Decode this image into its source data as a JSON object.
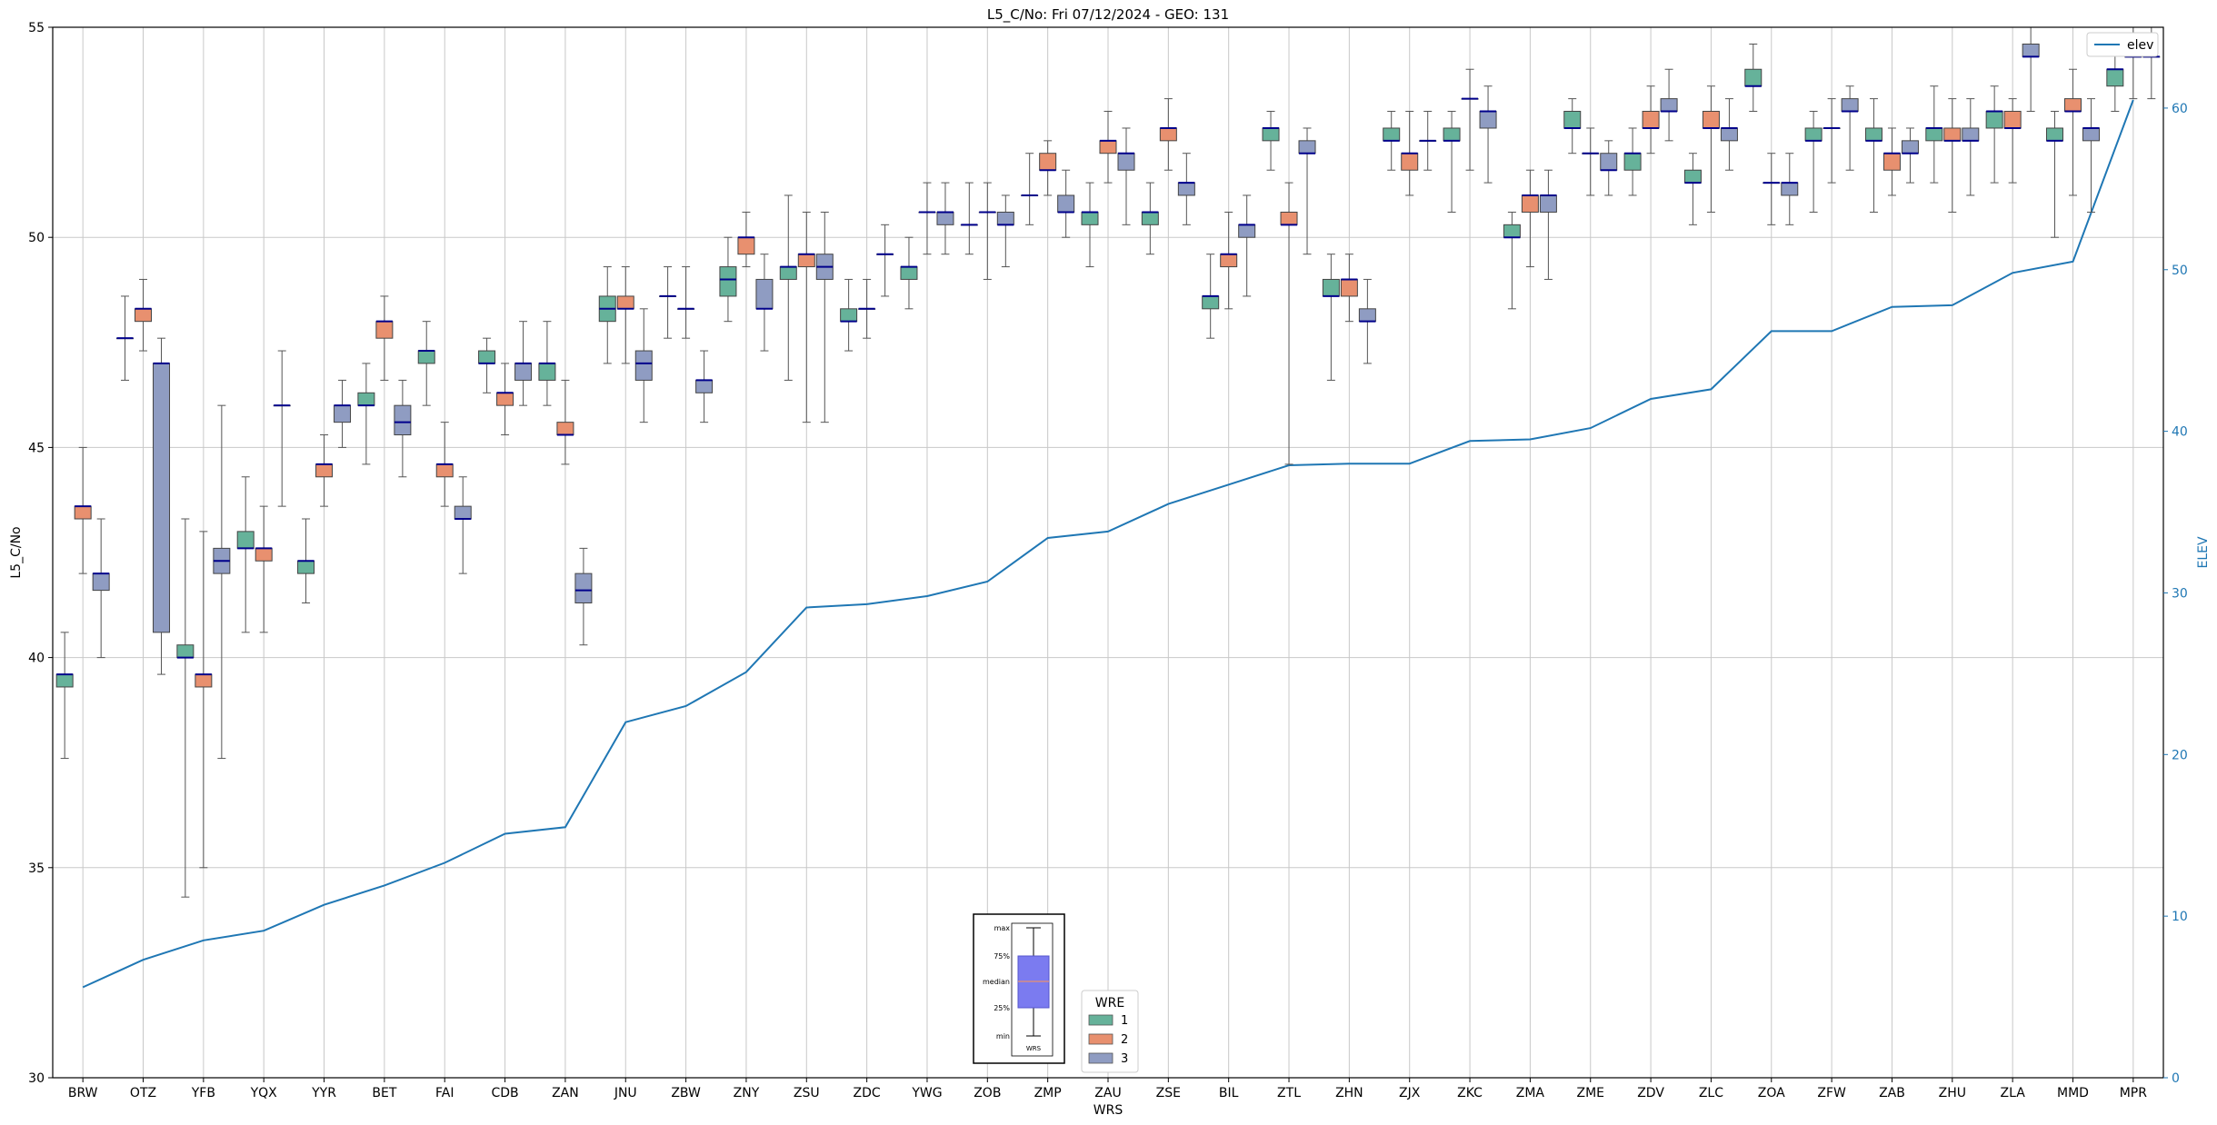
{
  "chart_data": {
    "type": "box",
    "title": "L5_C/No: Fri 07/12/2024 - GEO: 131",
    "xlabel": "WRS",
    "ylabel": "L5_C/No",
    "y2label": "ELEV",
    "ylim": [
      30,
      55
    ],
    "y2lim": [
      0,
      65
    ],
    "yticks": [
      30,
      35,
      40,
      45,
      50,
      55
    ],
    "y2ticks": [
      0,
      10,
      20,
      30,
      40,
      50,
      60
    ],
    "grid": true,
    "categories": [
      "BRW",
      "OTZ",
      "YFB",
      "YQX",
      "YYR",
      "BET",
      "FAI",
      "CDB",
      "ZAN",
      "JNU",
      "ZBW",
      "ZNY",
      "ZSU",
      "ZDC",
      "YWG",
      "ZOB",
      "ZMP",
      "ZAU",
      "ZSE",
      "BIL",
      "ZTL",
      "ZHN",
      "ZJX",
      "ZKC",
      "ZMA",
      "ZME",
      "ZDV",
      "ZLC",
      "ZOA",
      "ZFW",
      "ZAB",
      "ZHU",
      "ZLA",
      "MMD",
      "MPR"
    ],
    "wre_colors": {
      "1": "#66b29a",
      "2": "#e8906f",
      "3": "#8f9cc2"
    },
    "median_color": "#00008b",
    "elev_color": "#1f77b4",
    "boxes": [
      {
        "station": "BRW",
        "wre": 1,
        "min": 37.6,
        "q1": 39.3,
        "median": 39.6,
        "q3": 39.6,
        "max": 40.6
      },
      {
        "station": "BRW",
        "wre": 2,
        "min": 42.0,
        "q1": 43.3,
        "median": 43.6,
        "q3": 43.6,
        "max": 45.0
      },
      {
        "station": "BRW",
        "wre": 3,
        "min": 40.0,
        "q1": 41.6,
        "median": 42.0,
        "q3": 42.0,
        "max": 43.3
      },
      {
        "station": "OTZ",
        "wre": 1,
        "min": 46.6,
        "q1": 47.6,
        "median": 47.6,
        "q3": 47.6,
        "max": 48.6
      },
      {
        "station": "OTZ",
        "wre": 2,
        "min": 47.3,
        "q1": 48.0,
        "median": 48.3,
        "q3": 48.3,
        "max": 49.0
      },
      {
        "station": "OTZ",
        "wre": 3,
        "min": 39.6,
        "q1": 40.6,
        "median": 47.0,
        "q3": 47.0,
        "max": 47.6
      },
      {
        "station": "YFB",
        "wre": 1,
        "min": 34.3,
        "q1": 40.0,
        "median": 40.0,
        "q3": 40.3,
        "max": 43.3
      },
      {
        "station": "YFB",
        "wre": 2,
        "min": 35.0,
        "q1": 39.3,
        "median": 39.6,
        "q3": 39.6,
        "max": 43.0
      },
      {
        "station": "YFB",
        "wre": 3,
        "min": 37.6,
        "q1": 42.0,
        "median": 42.3,
        "q3": 42.6,
        "max": 46.0
      },
      {
        "station": "YQX",
        "wre": 1,
        "min": 40.6,
        "q1": 42.6,
        "median": 42.6,
        "q3": 43.0,
        "max": 44.3
      },
      {
        "station": "YQX",
        "wre": 2,
        "min": 40.6,
        "q1": 42.3,
        "median": 42.6,
        "q3": 42.6,
        "max": 43.6
      },
      {
        "station": "YQX",
        "wre": 3,
        "min": 43.6,
        "q1": 46.0,
        "median": 46.0,
        "q3": 46.0,
        "max": 47.3
      },
      {
        "station": "YYR",
        "wre": 1,
        "min": 41.3,
        "q1": 42.0,
        "median": 42.3,
        "q3": 42.3,
        "max": 43.3
      },
      {
        "station": "YYR",
        "wre": 2,
        "min": 43.6,
        "q1": 44.3,
        "median": 44.6,
        "q3": 44.6,
        "max": 45.3
      },
      {
        "station": "YYR",
        "wre": 3,
        "min": 45.0,
        "q1": 45.6,
        "median": 46.0,
        "q3": 46.0,
        "max": 46.6
      },
      {
        "station": "BET",
        "wre": 1,
        "min": 44.6,
        "q1": 46.0,
        "median": 46.0,
        "q3": 46.3,
        "max": 47.0
      },
      {
        "station": "BET",
        "wre": 2,
        "min": 46.6,
        "q1": 47.6,
        "median": 48.0,
        "q3": 48.0,
        "max": 48.6
      },
      {
        "station": "BET",
        "wre": 3,
        "min": 44.3,
        "q1": 45.3,
        "median": 45.6,
        "q3": 46.0,
        "max": 46.6
      },
      {
        "station": "FAI",
        "wre": 1,
        "min": 46.0,
        "q1": 47.0,
        "median": 47.3,
        "q3": 47.3,
        "max": 48.0
      },
      {
        "station": "FAI",
        "wre": 2,
        "min": 43.6,
        "q1": 44.3,
        "median": 44.6,
        "q3": 44.6,
        "max": 45.6
      },
      {
        "station": "FAI",
        "wre": 3,
        "min": 42.0,
        "q1": 43.3,
        "median": 43.3,
        "q3": 43.6,
        "max": 44.3
      },
      {
        "station": "CDB",
        "wre": 1,
        "min": 46.3,
        "q1": 47.0,
        "median": 47.0,
        "q3": 47.3,
        "max": 47.6
      },
      {
        "station": "CDB",
        "wre": 2,
        "min": 45.3,
        "q1": 46.0,
        "median": 46.3,
        "q3": 46.3,
        "max": 47.0
      },
      {
        "station": "CDB",
        "wre": 3,
        "min": 46.0,
        "q1": 46.6,
        "median": 47.0,
        "q3": 47.0,
        "max": 48.0
      },
      {
        "station": "ZAN",
        "wre": 1,
        "min": 46.0,
        "q1": 46.6,
        "median": 47.0,
        "q3": 47.0,
        "max": 48.0
      },
      {
        "station": "ZAN",
        "wre": 2,
        "min": 44.6,
        "q1": 45.3,
        "median": 45.3,
        "q3": 45.6,
        "max": 46.6
      },
      {
        "station": "ZAN",
        "wre": 3,
        "min": 40.3,
        "q1": 41.3,
        "median": 41.6,
        "q3": 42.0,
        "max": 42.6
      },
      {
        "station": "JNU",
        "wre": 1,
        "min": 47.0,
        "q1": 48.0,
        "median": 48.3,
        "q3": 48.6,
        "max": 49.3
      },
      {
        "station": "JNU",
        "wre": 2,
        "min": 47.0,
        "q1": 48.3,
        "median": 48.3,
        "q3": 48.6,
        "max": 49.3
      },
      {
        "station": "JNU",
        "wre": 3,
        "min": 45.6,
        "q1": 46.6,
        "median": 47.0,
        "q3": 47.3,
        "max": 48.3
      },
      {
        "station": "ZBW",
        "wre": 1,
        "min": 47.6,
        "q1": 48.6,
        "median": 48.6,
        "q3": 48.6,
        "max": 49.3
      },
      {
        "station": "ZBW",
        "wre": 2,
        "min": 47.6,
        "q1": 48.3,
        "median": 48.3,
        "q3": 48.3,
        "max": 49.3
      },
      {
        "station": "ZBW",
        "wre": 3,
        "min": 45.6,
        "q1": 46.3,
        "median": 46.6,
        "q3": 46.6,
        "max": 47.3
      },
      {
        "station": "ZNY",
        "wre": 1,
        "min": 48.0,
        "q1": 48.6,
        "median": 49.0,
        "q3": 49.3,
        "max": 50.0
      },
      {
        "station": "ZNY",
        "wre": 2,
        "min": 49.3,
        "q1": 49.6,
        "median": 50.0,
        "q3": 50.0,
        "max": 50.6
      },
      {
        "station": "ZNY",
        "wre": 3,
        "min": 47.3,
        "q1": 48.3,
        "median": 48.3,
        "q3": 49.0,
        "max": 49.6
      },
      {
        "station": "ZSU",
        "wre": 1,
        "min": 46.6,
        "q1": 49.0,
        "median": 49.3,
        "q3": 49.3,
        "max": 51.0
      },
      {
        "station": "ZSU",
        "wre": 2,
        "min": 45.6,
        "q1": 49.3,
        "median": 49.6,
        "q3": 49.6,
        "max": 50.6
      },
      {
        "station": "ZSU",
        "wre": 3,
        "min": 45.6,
        "q1": 49.0,
        "median": 49.3,
        "q3": 49.6,
        "max": 50.6
      },
      {
        "station": "ZDC",
        "wre": 1,
        "min": 47.3,
        "q1": 48.0,
        "median": 48.0,
        "q3": 48.3,
        "max": 49.0
      },
      {
        "station": "ZDC",
        "wre": 2,
        "min": 47.6,
        "q1": 48.3,
        "median": 48.3,
        "q3": 48.3,
        "max": 49.0
      },
      {
        "station": "ZDC",
        "wre": 3,
        "min": 48.6,
        "q1": 49.6,
        "median": 49.6,
        "q3": 49.6,
        "max": 50.3
      },
      {
        "station": "YWG",
        "wre": 1,
        "min": 48.3,
        "q1": 49.0,
        "median": 49.3,
        "q3": 49.3,
        "max": 50.0
      },
      {
        "station": "YWG",
        "wre": 2,
        "min": 49.6,
        "q1": 50.6,
        "median": 50.6,
        "q3": 50.6,
        "max": 51.3
      },
      {
        "station": "YWG",
        "wre": 3,
        "min": 49.6,
        "q1": 50.3,
        "median": 50.6,
        "q3": 50.6,
        "max": 51.3
      },
      {
        "station": "ZOB",
        "wre": 1,
        "min": 49.6,
        "q1": 50.3,
        "median": 50.3,
        "q3": 50.3,
        "max": 51.3
      },
      {
        "station": "ZOB",
        "wre": 2,
        "min": 49.0,
        "q1": 50.6,
        "median": 50.6,
        "q3": 50.6,
        "max": 51.3
      },
      {
        "station": "ZOB",
        "wre": 3,
        "min": 49.3,
        "q1": 50.3,
        "median": 50.3,
        "q3": 50.6,
        "max": 51.0
      },
      {
        "station": "ZMP",
        "wre": 1,
        "min": 50.3,
        "q1": 51.0,
        "median": 51.0,
        "q3": 51.0,
        "max": 52.0
      },
      {
        "station": "ZMP",
        "wre": 2,
        "min": 51.0,
        "q1": 51.6,
        "median": 51.6,
        "q3": 52.0,
        "max": 52.3
      },
      {
        "station": "ZMP",
        "wre": 3,
        "min": 50.0,
        "q1": 50.6,
        "median": 50.6,
        "q3": 51.0,
        "max": 51.6
      },
      {
        "station": "ZAU",
        "wre": 1,
        "min": 49.3,
        "q1": 50.3,
        "median": 50.6,
        "q3": 50.6,
        "max": 51.3
      },
      {
        "station": "ZAU",
        "wre": 2,
        "min": 51.3,
        "q1": 52.0,
        "median": 52.3,
        "q3": 52.3,
        "max": 53.0
      },
      {
        "station": "ZAU",
        "wre": 3,
        "min": 50.3,
        "q1": 51.6,
        "median": 52.0,
        "q3": 52.0,
        "max": 52.6
      },
      {
        "station": "ZSE",
        "wre": 1,
        "min": 49.6,
        "q1": 50.3,
        "median": 50.6,
        "q3": 50.6,
        "max": 51.3
      },
      {
        "station": "ZSE",
        "wre": 2,
        "min": 51.6,
        "q1": 52.3,
        "median": 52.6,
        "q3": 52.6,
        "max": 53.3
      },
      {
        "station": "ZSE",
        "wre": 3,
        "min": 50.3,
        "q1": 51.0,
        "median": 51.3,
        "q3": 51.3,
        "max": 52.0
      },
      {
        "station": "BIL",
        "wre": 1,
        "min": 47.6,
        "q1": 48.3,
        "median": 48.6,
        "q3": 48.6,
        "max": 49.6
      },
      {
        "station": "BIL",
        "wre": 2,
        "min": 48.3,
        "q1": 49.3,
        "median": 49.6,
        "q3": 49.6,
        "max": 50.6
      },
      {
        "station": "BIL",
        "wre": 3,
        "min": 48.6,
        "q1": 50.0,
        "median": 50.3,
        "q3": 50.3,
        "max": 51.0
      },
      {
        "station": "ZTL",
        "wre": 1,
        "min": 51.6,
        "q1": 52.3,
        "median": 52.6,
        "q3": 52.6,
        "max": 53.0
      },
      {
        "station": "ZTL",
        "wre": 2,
        "min": 44.6,
        "q1": 50.3,
        "median": 50.3,
        "q3": 50.6,
        "max": 51.3
      },
      {
        "station": "ZTL",
        "wre": 3,
        "min": 49.6,
        "q1": 52.0,
        "median": 52.0,
        "q3": 52.3,
        "max": 52.6
      },
      {
        "station": "ZHN",
        "wre": 1,
        "min": 46.6,
        "q1": 48.6,
        "median": 48.6,
        "q3": 49.0,
        "max": 49.6
      },
      {
        "station": "ZHN",
        "wre": 2,
        "min": 48.0,
        "q1": 48.6,
        "median": 49.0,
        "q3": 49.0,
        "max": 49.6
      },
      {
        "station": "ZHN",
        "wre": 3,
        "min": 47.0,
        "q1": 48.0,
        "median": 48.0,
        "q3": 48.3,
        "max": 49.0
      },
      {
        "station": "ZJX",
        "wre": 1,
        "min": 51.6,
        "q1": 52.3,
        "median": 52.3,
        "q3": 52.6,
        "max": 53.0
      },
      {
        "station": "ZJX",
        "wre": 2,
        "min": 51.0,
        "q1": 51.6,
        "median": 52.0,
        "q3": 52.0,
        "max": 53.0
      },
      {
        "station": "ZJX",
        "wre": 3,
        "min": 51.6,
        "q1": 52.3,
        "median": 52.3,
        "q3": 52.3,
        "max": 53.0
      },
      {
        "station": "ZKC",
        "wre": 1,
        "min": 50.6,
        "q1": 52.3,
        "median": 52.3,
        "q3": 52.6,
        "max": 53.0
      },
      {
        "station": "ZKC",
        "wre": 2,
        "min": 51.6,
        "q1": 53.3,
        "median": 53.3,
        "q3": 53.3,
        "max": 54.0
      },
      {
        "station": "ZKC",
        "wre": 3,
        "min": 51.3,
        "q1": 52.6,
        "median": 53.0,
        "q3": 53.0,
        "max": 53.6
      },
      {
        "station": "ZMA",
        "wre": 1,
        "min": 48.3,
        "q1": 50.0,
        "median": 50.0,
        "q3": 50.3,
        "max": 50.6
      },
      {
        "station": "ZMA",
        "wre": 2,
        "min": 49.3,
        "q1": 50.6,
        "median": 51.0,
        "q3": 51.0,
        "max": 51.6
      },
      {
        "station": "ZMA",
        "wre": 3,
        "min": 49.0,
        "q1": 50.6,
        "median": 51.0,
        "q3": 51.0,
        "max": 51.6
      },
      {
        "station": "ZME",
        "wre": 1,
        "min": 52.0,
        "q1": 52.6,
        "median": 52.6,
        "q3": 53.0,
        "max": 53.3
      },
      {
        "station": "ZME",
        "wre": 2,
        "min": 51.0,
        "q1": 52.0,
        "median": 52.0,
        "q3": 52.0,
        "max": 52.6
      },
      {
        "station": "ZME",
        "wre": 3,
        "min": 51.0,
        "q1": 51.6,
        "median": 51.6,
        "q3": 52.0,
        "max": 52.3
      },
      {
        "station": "ZDV",
        "wre": 1,
        "min": 51.0,
        "q1": 51.6,
        "median": 52.0,
        "q3": 52.0,
        "max": 52.6
      },
      {
        "station": "ZDV",
        "wre": 2,
        "min": 52.0,
        "q1": 52.6,
        "median": 52.6,
        "q3": 53.0,
        "max": 53.6
      },
      {
        "station": "ZDV",
        "wre": 3,
        "min": 52.3,
        "q1": 53.0,
        "median": 53.0,
        "q3": 53.3,
        "max": 54.0
      },
      {
        "station": "ZLC",
        "wre": 1,
        "min": 50.3,
        "q1": 51.3,
        "median": 51.3,
        "q3": 51.6,
        "max": 52.0
      },
      {
        "station": "ZLC",
        "wre": 2,
        "min": 50.6,
        "q1": 52.6,
        "median": 52.6,
        "q3": 53.0,
        "max": 53.6
      },
      {
        "station": "ZLC",
        "wre": 3,
        "min": 51.6,
        "q1": 52.3,
        "median": 52.6,
        "q3": 52.6,
        "max": 53.3
      },
      {
        "station": "ZOA",
        "wre": 1,
        "min": 53.0,
        "q1": 53.6,
        "median": 53.6,
        "q3": 54.0,
        "max": 54.6
      },
      {
        "station": "ZOA",
        "wre": 2,
        "min": 50.3,
        "q1": 51.3,
        "median": 51.3,
        "q3": 51.3,
        "max": 52.0
      },
      {
        "station": "ZOA",
        "wre": 3,
        "min": 50.3,
        "q1": 51.0,
        "median": 51.3,
        "q3": 51.3,
        "max": 52.0
      },
      {
        "station": "ZFW",
        "wre": 1,
        "min": 50.6,
        "q1": 52.3,
        "median": 52.3,
        "q3": 52.6,
        "max": 53.0
      },
      {
        "station": "ZFW",
        "wre": 2,
        "min": 51.3,
        "q1": 52.6,
        "median": 52.6,
        "q3": 52.6,
        "max": 53.3
      },
      {
        "station": "ZFW",
        "wre": 3,
        "min": 51.6,
        "q1": 53.0,
        "median": 53.0,
        "q3": 53.3,
        "max": 53.6
      },
      {
        "station": "ZAB",
        "wre": 1,
        "min": 50.6,
        "q1": 52.3,
        "median": 52.3,
        "q3": 52.6,
        "max": 53.3
      },
      {
        "station": "ZAB",
        "wre": 2,
        "min": 51.0,
        "q1": 51.6,
        "median": 52.0,
        "q3": 52.0,
        "max": 52.6
      },
      {
        "station": "ZAB",
        "wre": 3,
        "min": 51.3,
        "q1": 52.0,
        "median": 52.0,
        "q3": 52.3,
        "max": 52.6
      },
      {
        "station": "ZHU",
        "wre": 1,
        "min": 51.3,
        "q1": 52.3,
        "median": 52.6,
        "q3": 52.6,
        "max": 53.6
      },
      {
        "station": "ZHU",
        "wre": 2,
        "min": 50.6,
        "q1": 52.3,
        "median": 52.3,
        "q3": 52.6,
        "max": 53.3
      },
      {
        "station": "ZHU",
        "wre": 3,
        "min": 51.0,
        "q1": 52.3,
        "median": 52.3,
        "q3": 52.6,
        "max": 53.3
      },
      {
        "station": "ZLA",
        "wre": 1,
        "min": 51.3,
        "q1": 52.6,
        "median": 53.0,
        "q3": 53.0,
        "max": 53.6
      },
      {
        "station": "ZLA",
        "wre": 2,
        "min": 51.3,
        "q1": 52.6,
        "median": 52.6,
        "q3": 53.0,
        "max": 53.3
      },
      {
        "station": "ZLA",
        "wre": 3,
        "min": 53.0,
        "q1": 54.3,
        "median": 54.3,
        "q3": 54.6,
        "max": 55.0
      },
      {
        "station": "MMD",
        "wre": 1,
        "min": 50.0,
        "q1": 52.3,
        "median": 52.3,
        "q3": 52.6,
        "max": 53.0
      },
      {
        "station": "MMD",
        "wre": 2,
        "min": 51.0,
        "q1": 53.0,
        "median": 53.0,
        "q3": 53.3,
        "max": 54.0
      },
      {
        "station": "MMD",
        "wre": 3,
        "min": 50.6,
        "q1": 52.3,
        "median": 52.6,
        "q3": 52.6,
        "max": 53.3
      },
      {
        "station": "MPR",
        "wre": 1,
        "min": 53.0,
        "q1": 53.6,
        "median": 54.0,
        "q3": 54.0,
        "max": 54.6
      },
      {
        "station": "MPR",
        "wre": 2,
        "min": 53.3,
        "q1": 54.3,
        "median": 54.3,
        "q3": 54.3,
        "max": 55.0
      },
      {
        "station": "MPR",
        "wre": 3,
        "min": 53.3,
        "q1": 54.3,
        "median": 54.3,
        "q3": 54.3,
        "max": 55.0
      }
    ],
    "elev": {
      "name": "elev",
      "values": [
        5.6,
        7.3,
        8.5,
        9.1,
        10.7,
        11.9,
        13.3,
        15.1,
        15.5,
        22.0,
        23.0,
        25.1,
        29.1,
        29.3,
        29.8,
        30.7,
        33.4,
        33.8,
        35.5,
        36.7,
        37.9,
        38.0,
        38.0,
        39.4,
        39.5,
        40.2,
        42.0,
        42.6,
        46.2,
        46.2,
        47.7,
        47.8,
        49.8,
        50.5,
        60.5
      ]
    },
    "legend": {
      "title": "WRE",
      "entries": [
        "1",
        "2",
        "3"
      ],
      "elev_entry": "elev",
      "elev_placement": "top-right",
      "wre_placement": "bottom-center"
    },
    "key_inset": {
      "labels": [
        "max",
        "75%",
        "median",
        "25%",
        "min"
      ],
      "xlabel": "WRS"
    }
  }
}
